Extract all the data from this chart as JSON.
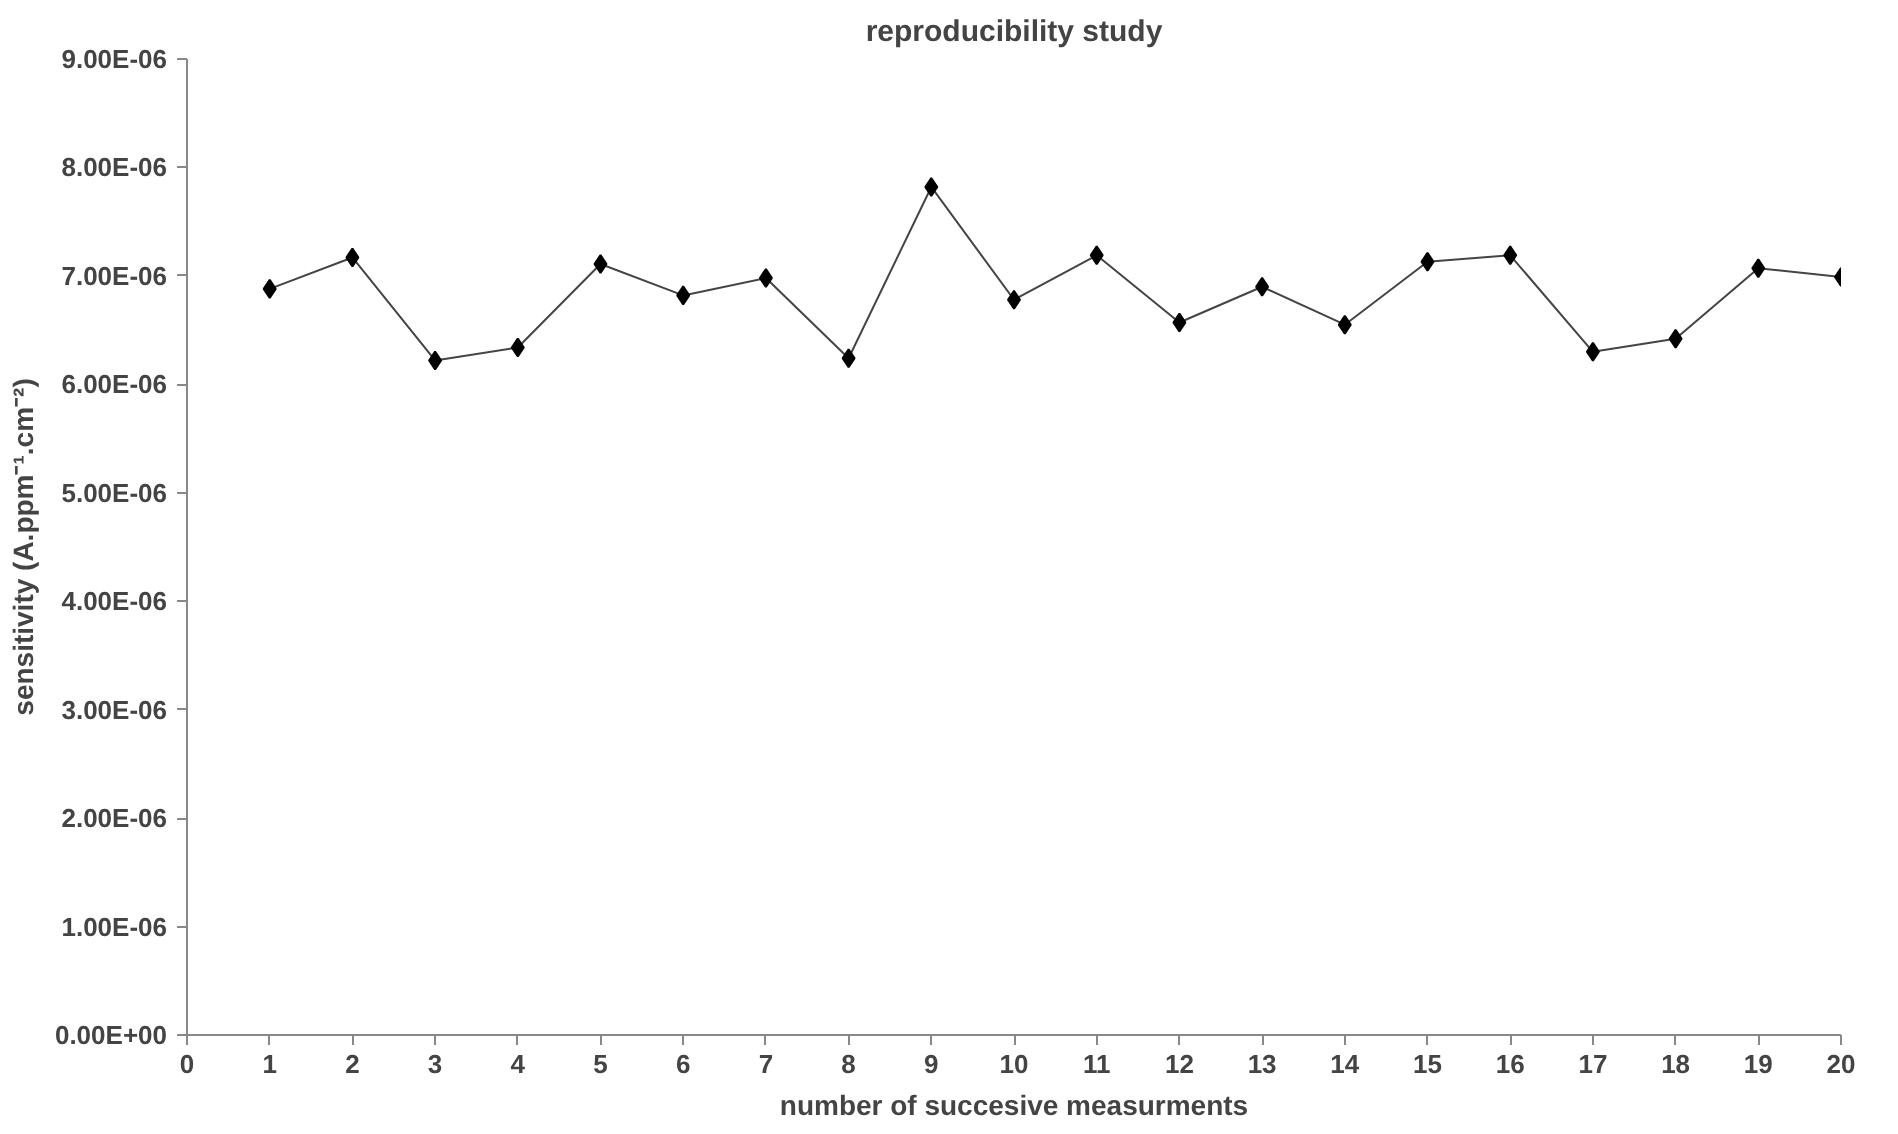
{
  "chart_data": {
    "type": "line",
    "title": "reproducibility study",
    "xlabel": "number of succesive measurments",
    "ylabel": "sensitivity (A.ppm⁻¹.cm⁻²)",
    "x": [
      1,
      2,
      3,
      4,
      5,
      6,
      7,
      8,
      9,
      10,
      11,
      12,
      13,
      14,
      15,
      16,
      17,
      18,
      19,
      20
    ],
    "series": [
      {
        "color": "#000000",
        "values": [
          6.88e-06,
          7.17e-06,
          6.22e-06,
          6.34e-06,
          7.11e-06,
          6.82e-06,
          6.98e-06,
          6.24e-06,
          7.82e-06,
          6.78e-06,
          7.19e-06,
          6.57e-06,
          6.9e-06,
          6.55e-06,
          7.13e-06,
          7.19e-06,
          6.3e-06,
          6.42e-06,
          7.07e-06,
          6.99e-06
        ]
      }
    ],
    "xlim": [
      0,
      20
    ],
    "xticks": [
      0,
      1,
      2,
      3,
      4,
      5,
      6,
      7,
      8,
      9,
      10,
      11,
      12,
      13,
      14,
      15,
      16,
      17,
      18,
      19,
      20
    ],
    "ylim": [
      0,
      9e-06
    ],
    "yticks": [
      {
        "value": 0,
        "label": "0.00E+00"
      },
      {
        "value": 1e-06,
        "label": "1.00E-06"
      },
      {
        "value": 2e-06,
        "label": "2.00E-06"
      },
      {
        "value": 3e-06,
        "label": "3.00E-06"
      },
      {
        "value": 4e-06,
        "label": "4.00E-06"
      },
      {
        "value": 5e-06,
        "label": "5.00E-06"
      },
      {
        "value": 6e-06,
        "label": "6.00E-06"
      },
      {
        "value": 7e-06,
        "label": "7.00E-06"
      },
      {
        "value": 8e-06,
        "label": "8.00E-06"
      },
      {
        "value": 9e-06,
        "label": "9.00E-06"
      }
    ],
    "grid": false,
    "marker": "diamond",
    "line_style": "solid"
  }
}
